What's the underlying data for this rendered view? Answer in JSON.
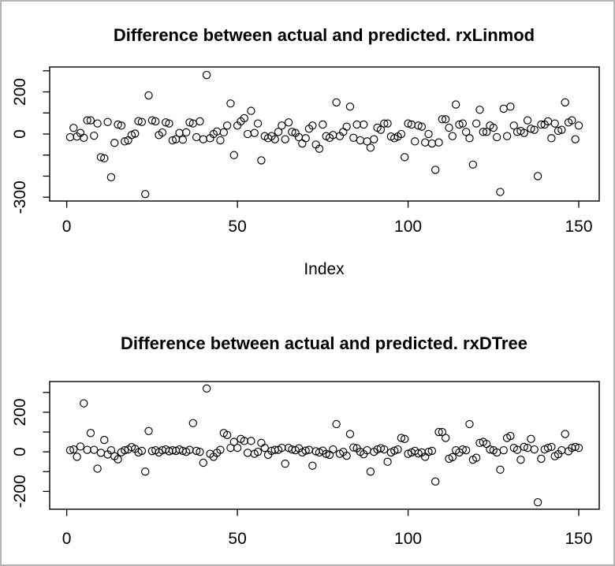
{
  "window": {
    "background": "#ffffff",
    "border_color": "#b5b5b5",
    "foreground": "#000000"
  },
  "chart_data": [
    {
      "type": "scatter",
      "title": "Difference between actual and predicted. rxLinmod",
      "xlabel": "Index",
      "ylabel": "",
      "marker": "open-circle",
      "grid": false,
      "legend": "none",
      "x_start": 1,
      "xlim": [
        -5,
        156
      ],
      "x_ticks": [
        0,
        50,
        100,
        150
      ],
      "ylim": [
        -318,
        318
      ],
      "y_ticks": [
        300,
        200,
        100,
        0,
        -100,
        -200,
        -300
      ],
      "y_tick_labels": [
        {
          "value": 200,
          "text": "200"
        },
        {
          "value": 0,
          "text": "0"
        },
        {
          "value": -300,
          "text": "-300"
        }
      ],
      "values": [
        -15,
        29,
        -12,
        5,
        -18,
        65,
        65,
        -8,
        50,
        -110,
        -115,
        57,
        -205,
        -42,
        45,
        40,
        -35,
        -30,
        -5,
        2,
        61,
        57,
        -285,
        183,
        65,
        60,
        -5,
        7,
        55,
        50,
        -30,
        -25,
        5,
        -27,
        8,
        55,
        50,
        -15,
        60,
        -25,
        280,
        -20,
        0,
        12,
        -30,
        8,
        40,
        145,
        -100,
        40,
        60,
        75,
        0,
        110,
        5,
        50,
        -125,
        -10,
        -20,
        -10,
        -25,
        10,
        40,
        -25,
        55,
        10,
        5,
        -15,
        -45,
        -20,
        25,
        40,
        -50,
        -70,
        45,
        -10,
        -18,
        -5,
        150,
        -10,
        10,
        35,
        130,
        -18,
        45,
        -30,
        45,
        -35,
        -65,
        -25,
        30,
        20,
        50,
        50,
        -12,
        -20,
        -12,
        0,
        -110,
        50,
        45,
        -35,
        40,
        35,
        -40,
        0,
        -45,
        -170,
        -40,
        70,
        70,
        30,
        -10,
        140,
        45,
        50,
        10,
        -20,
        -145,
        50,
        115,
        10,
        10,
        40,
        30,
        -15,
        -275,
        120,
        -10,
        130,
        40,
        10,
        15,
        5,
        65,
        25,
        20,
        -200,
        45,
        45,
        60,
        -20,
        50,
        15,
        20,
        150,
        55,
        65,
        -25,
        40
      ]
    },
    {
      "type": "scatter",
      "title": "Difference between actual and predicted. rxDTree",
      "xlabel": "",
      "ylabel": "",
      "marker": "open-circle",
      "grid": false,
      "legend": "none",
      "x_start": 1,
      "xlim": [
        -5,
        156
      ],
      "x_ticks": [
        0,
        50,
        100,
        150
      ],
      "ylim": [
        -290,
        355
      ],
      "y_ticks": [
        300,
        200,
        100,
        0,
        -100,
        -200
      ],
      "y_tick_labels": [
        {
          "value": 200,
          "text": "200"
        },
        {
          "value": 0,
          "text": "0"
        },
        {
          "value": -200,
          "text": "-200"
        }
      ],
      "values": [
        8,
        12,
        -25,
        27,
        245,
        10,
        95,
        10,
        -85,
        -5,
        60,
        -13,
        8,
        -22,
        -38,
        -2,
        8,
        12,
        24,
        15,
        -3,
        5,
        -100,
        105,
        4,
        8,
        -3,
        8,
        12,
        3,
        8,
        5,
        12,
        5,
        0,
        10,
        145,
        5,
        0,
        -55,
        320,
        -10,
        -25,
        -5,
        10,
        95,
        85,
        20,
        50,
        20,
        65,
        55,
        -5,
        55,
        -10,
        0,
        45,
        20,
        -15,
        5,
        10,
        10,
        20,
        -60,
        20,
        12,
        8,
        18,
        -3,
        6,
        10,
        -70,
        3,
        -3,
        6,
        -10,
        -15,
        12,
        140,
        -10,
        0,
        -20,
        90,
        22,
        18,
        0,
        -12,
        8,
        -100,
        0,
        12,
        18,
        12,
        -50,
        -3,
        6,
        12,
        70,
        65,
        -10,
        -3,
        5,
        -8,
        -3,
        -25,
        0,
        5,
        -150,
        100,
        100,
        70,
        -35,
        -27,
        8,
        -3,
        12,
        8,
        140,
        -40,
        -30,
        45,
        50,
        40,
        12,
        8,
        -3,
        -90,
        8,
        70,
        80,
        20,
        10,
        -40,
        25,
        20,
        65,
        12,
        -255,
        -35,
        12,
        20,
        25,
        -22,
        -12,
        8,
        90,
        3,
        20,
        25,
        20
      ]
    }
  ]
}
